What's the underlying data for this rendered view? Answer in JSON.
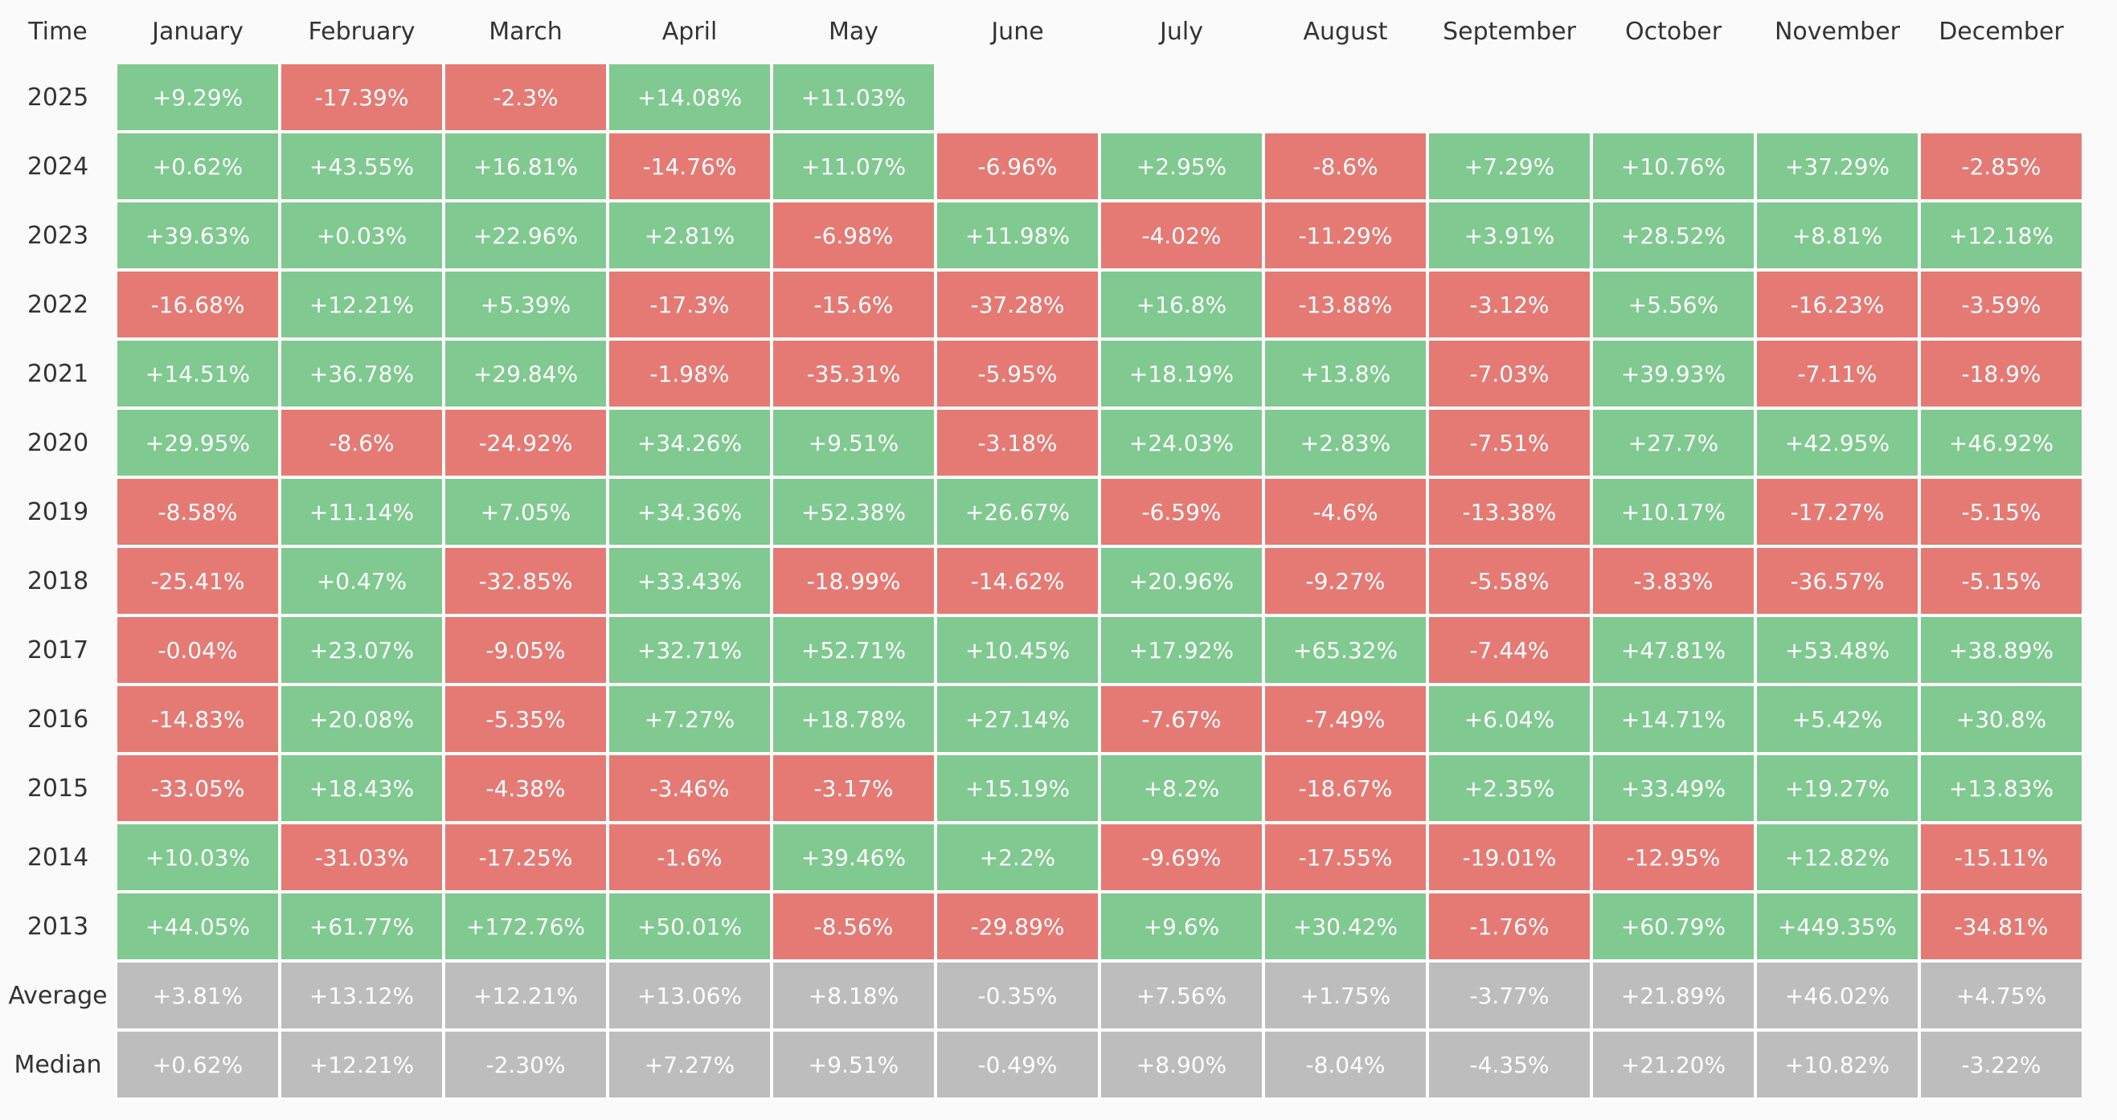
{
  "table": {
    "header": [
      "Time",
      "January",
      "February",
      "March",
      "April",
      "May",
      "June",
      "July",
      "August",
      "September",
      "October",
      "November",
      "December"
    ],
    "rows": [
      [
        "2025",
        "+9.29%",
        "-17.39%",
        "-2.3%",
        "+14.08%",
        "+11.03%"
      ],
      [
        "2024",
        "+0.62%",
        "+43.55%",
        "+16.81%",
        "-14.76%",
        "+11.07%",
        "-6.96%",
        "+2.95%",
        "-8.6%",
        "+7.29%",
        "+10.76%",
        "+37.29%",
        "-2.85%"
      ],
      [
        "2023",
        "+39.63%",
        "+0.03%",
        "+22.96%",
        "+2.81%",
        "-6.98%",
        "+11.98%",
        "-4.02%",
        "-11.29%",
        "+3.91%",
        "+28.52%",
        "+8.81%",
        "+12.18%"
      ],
      [
        "2022",
        "-16.68%",
        "+12.21%",
        "+5.39%",
        "-17.3%",
        "-15.6%",
        "-37.28%",
        "+16.8%",
        "-13.88%",
        "-3.12%",
        "+5.56%",
        "-16.23%",
        "-3.59%"
      ],
      [
        "2021",
        "+14.51%",
        "+36.78%",
        "+29.84%",
        "-1.98%",
        "-35.31%",
        "-5.95%",
        "+18.19%",
        "+13.8%",
        "-7.03%",
        "+39.93%",
        "-7.11%",
        "-18.9%"
      ],
      [
        "2020",
        "+29.95%",
        "-8.6%",
        "-24.92%",
        "+34.26%",
        "+9.51%",
        "-3.18%",
        "+24.03%",
        "+2.83%",
        "-7.51%",
        "+27.7%",
        "+42.95%",
        "+46.92%"
      ],
      [
        "2019",
        "-8.58%",
        "+11.14%",
        "+7.05%",
        "+34.36%",
        "+52.38%",
        "+26.67%",
        "-6.59%",
        "-4.6%",
        "-13.38%",
        "+10.17%",
        "-17.27%",
        "-5.15%"
      ],
      [
        "2018",
        "-25.41%",
        "+0.47%",
        "-32.85%",
        "+33.43%",
        "-18.99%",
        "-14.62%",
        "+20.96%",
        "-9.27%",
        "-5.58%",
        "-3.83%",
        "-36.57%",
        "-5.15%"
      ],
      [
        "2017",
        "-0.04%",
        "+23.07%",
        "-9.05%",
        "+32.71%",
        "+52.71%",
        "+10.45%",
        "+17.92%",
        "+65.32%",
        "-7.44%",
        "+47.81%",
        "+53.48%",
        "+38.89%"
      ],
      [
        "2016",
        "-14.83%",
        "+20.08%",
        "-5.35%",
        "+7.27%",
        "+18.78%",
        "+27.14%",
        "-7.67%",
        "-7.49%",
        "+6.04%",
        "+14.71%",
        "+5.42%",
        "+30.8%"
      ],
      [
        "2015",
        "-33.05%",
        "+18.43%",
        "-4.38%",
        "-3.46%",
        "-3.17%",
        "+15.19%",
        "+8.2%",
        "-18.67%",
        "+2.35%",
        "+33.49%",
        "+19.27%",
        "+13.83%"
      ],
      [
        "2014",
        "+10.03%",
        "-31.03%",
        "-17.25%",
        "-1.6%",
        "+39.46%",
        "+2.2%",
        "-9.69%",
        "-17.55%",
        "-19.01%",
        "-12.95%",
        "+12.82%",
        "-15.11%"
      ],
      [
        "2013",
        "+44.05%",
        "+61.77%",
        "+172.76%",
        "+50.01%",
        "-8.56%",
        "-29.89%",
        "+9.6%",
        "+30.42%",
        "-1.76%",
        "+60.79%",
        "+449.35%",
        "-34.81%"
      ]
    ],
    "summary_rows": [
      [
        "Average",
        "+3.81%",
        "+13.12%",
        "+12.21%",
        "+13.06%",
        "+8.18%",
        "-0.35%",
        "+7.56%",
        "+1.75%",
        "-3.77%",
        "+21.89%",
        "+46.02%",
        "+4.75%"
      ],
      [
        "Median",
        "+0.62%",
        "+12.21%",
        "-2.30%",
        "+7.27%",
        "+9.51%",
        "-0.49%",
        "+8.90%",
        "-8.04%",
        "-4.35%",
        "+21.20%",
        "+10.82%",
        "-3.22%"
      ]
    ],
    "colors": {
      "positive": "#80c990",
      "negative": "#e57a74",
      "summary": "#bdbdbd"
    }
  }
}
